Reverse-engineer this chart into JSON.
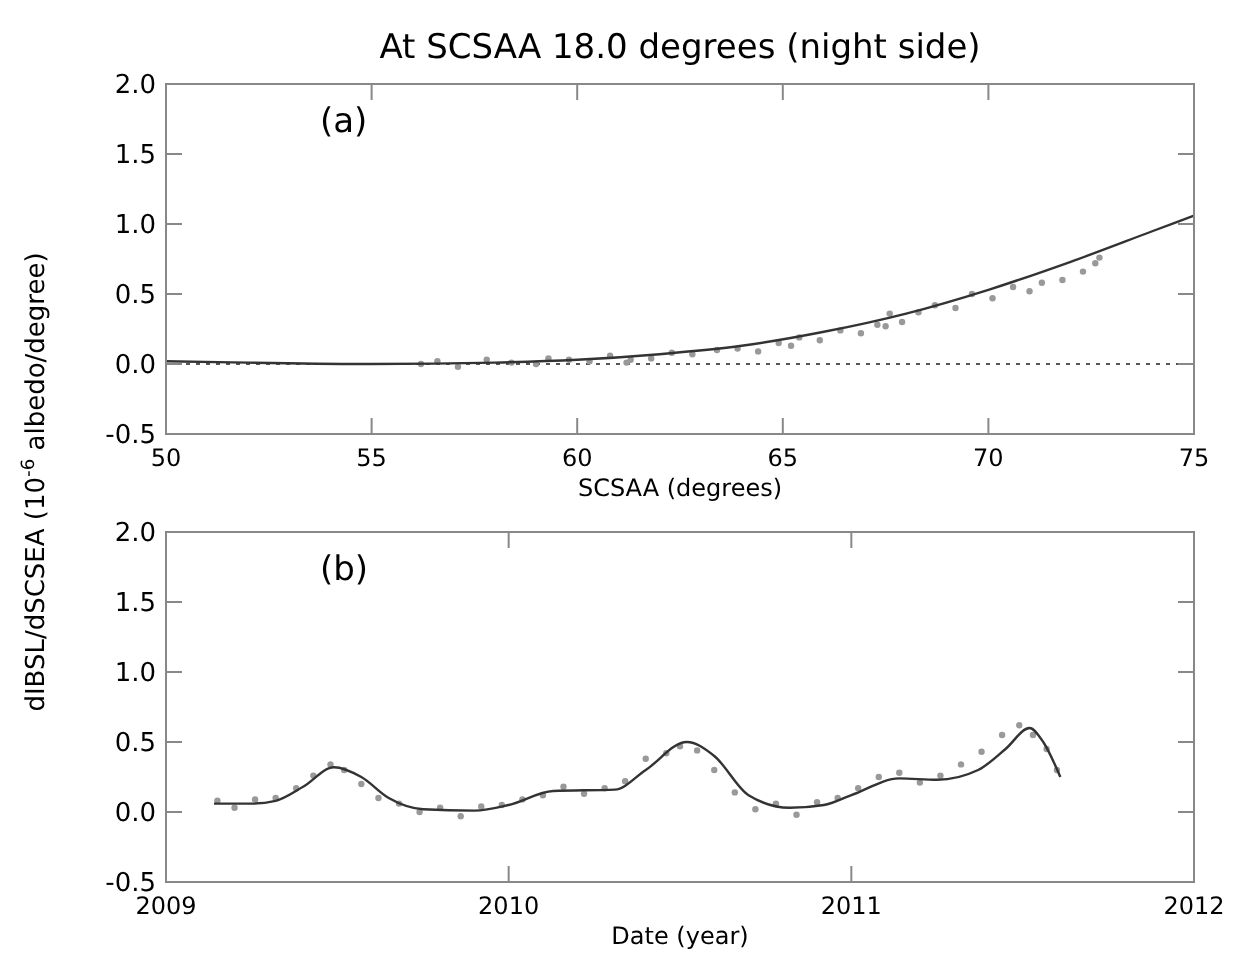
{
  "chart_data": [
    {
      "type": "scatter",
      "title": "At SCSAA 18.0 degrees (night side)",
      "xlabel": "SCSAA (degrees)",
      "ylabel": "dIBSL/dSCSEA (10$^{-6}$ albedo/degree)",
      "annotations": [
        "(a)"
      ],
      "xlim": [
        50,
        75
      ],
      "xticks": [
        50,
        55,
        60,
        65,
        70,
        75
      ],
      "ylim": [
        -0.5,
        2.0
      ],
      "yticks": [
        {
          "value": -0.5,
          "label": "-0.5"
        },
        {
          "value": 0,
          "label": "0.0"
        },
        {
          "value": 0.5,
          "label": "0.5"
        },
        {
          "value": 1,
          "label": "1.0"
        },
        {
          "value": 1.5,
          "label": "1.5"
        },
        {
          "value": 2,
          "label": "2.0"
        }
      ],
      "grid": false,
      "ref_lines": [
        {
          "axis": "y",
          "value": 0,
          "color": "#555555",
          "line_style": "dotted"
        }
      ],
      "series": [
        {
          "color": "#999999",
          "marker": "circle",
          "x": [
            56.2,
            56.6,
            57.1,
            57.8,
            58.4,
            59.0,
            59.3,
            59.8,
            60.3,
            60.8,
            61.2,
            61.3,
            61.8,
            62.3,
            62.8,
            63.4,
            63.9,
            64.4,
            64.9,
            65.2,
            65.4,
            65.9,
            66.4,
            66.9,
            67.3,
            67.5,
            67.6,
            67.9,
            68.3,
            68.7,
            69.2,
            69.6,
            70.1,
            70.6,
            71.0,
            71.3,
            71.8,
            72.3,
            72.6,
            72.7
          ],
          "values": [
            0.0,
            0.02,
            -0.02,
            0.03,
            0.01,
            0.0,
            0.04,
            0.03,
            0.02,
            0.06,
            0.01,
            0.03,
            0.04,
            0.08,
            0.07,
            0.1,
            0.11,
            0.09,
            0.15,
            0.13,
            0.19,
            0.17,
            0.24,
            0.22,
            0.28,
            0.27,
            0.36,
            0.3,
            0.37,
            0.42,
            0.4,
            0.5,
            0.47,
            0.55,
            0.52,
            0.58,
            0.6,
            0.66,
            0.72,
            0.76
          ]
        },
        {
          "type": "line",
          "color": "#333333",
          "marker": "none",
          "line_style": "solid",
          "x": [
            50,
            52,
            55,
            58,
            60,
            62,
            64,
            66,
            68,
            70,
            72,
            74,
            75
          ],
          "values": [
            0.02,
            0.01,
            0.0,
            0.01,
            0.03,
            0.07,
            0.13,
            0.23,
            0.36,
            0.53,
            0.73,
            0.95,
            1.06
          ]
        }
      ]
    },
    {
      "type": "scatter",
      "xlabel": "Date (year)",
      "annotations": [
        "(b)"
      ],
      "xlim": [
        2009,
        2012
      ],
      "xticks": [
        2009,
        2010,
        2011,
        2012
      ],
      "ylim": [
        -0.5,
        2.0
      ],
      "yticks": [
        {
          "value": -0.5,
          "label": "-0.5"
        },
        {
          "value": 0,
          "label": "0.0"
        },
        {
          "value": 0.5,
          "label": "0.5"
        },
        {
          "value": 1,
          "label": "1.0"
        },
        {
          "value": 1.5,
          "label": "1.5"
        },
        {
          "value": 2,
          "label": "2.0"
        }
      ],
      "grid": false,
      "series": [
        {
          "color": "#999999",
          "marker": "circle",
          "x": [
            2009.15,
            2009.2,
            2009.26,
            2009.32,
            2009.38,
            2009.43,
            2009.48,
            2009.52,
            2009.57,
            2009.62,
            2009.68,
            2009.74,
            2009.8,
            2009.86,
            2009.92,
            2009.98,
            2010.04,
            2010.1,
            2010.16,
            2010.22,
            2010.28,
            2010.34,
            2010.4,
            2010.46,
            2010.5,
            2010.55,
            2010.6,
            2010.66,
            2010.72,
            2010.78,
            2010.84,
            2010.9,
            2010.96,
            2011.02,
            2011.08,
            2011.14,
            2011.2,
            2011.26,
            2011.32,
            2011.38,
            2011.44,
            2011.49,
            2011.53,
            2011.57,
            2011.6
          ],
          "values": [
            0.08,
            0.03,
            0.09,
            0.1,
            0.17,
            0.26,
            0.34,
            0.3,
            0.2,
            0.1,
            0.06,
            0.0,
            0.03,
            -0.03,
            0.04,
            0.05,
            0.09,
            0.12,
            0.18,
            0.13,
            0.17,
            0.22,
            0.38,
            0.42,
            0.47,
            0.44,
            0.3,
            0.14,
            0.02,
            0.06,
            -0.02,
            0.07,
            0.1,
            0.17,
            0.25,
            0.28,
            0.21,
            0.26,
            0.34,
            0.43,
            0.55,
            0.62,
            0.55,
            0.45,
            0.3
          ]
        },
        {
          "type": "line",
          "color": "#333333",
          "marker": "none",
          "line_style": "solid",
          "x": [
            2009.14,
            2009.25,
            2009.32,
            2009.4,
            2009.49,
            2009.57,
            2009.65,
            2009.75,
            2009.9,
            2010.0,
            2010.13,
            2010.31,
            2010.4,
            2010.52,
            2010.6,
            2010.7,
            2010.82,
            2010.92,
            2011.0,
            2011.14,
            2011.25,
            2011.37,
            2011.45,
            2011.52,
            2011.56,
            2011.61
          ],
          "values": [
            0.06,
            0.06,
            0.08,
            0.18,
            0.32,
            0.25,
            0.1,
            0.02,
            0.01,
            0.05,
            0.15,
            0.16,
            0.3,
            0.5,
            0.4,
            0.12,
            0.03,
            0.05,
            0.12,
            0.24,
            0.23,
            0.3,
            0.45,
            0.6,
            0.5,
            0.25
          ]
        }
      ]
    }
  ]
}
